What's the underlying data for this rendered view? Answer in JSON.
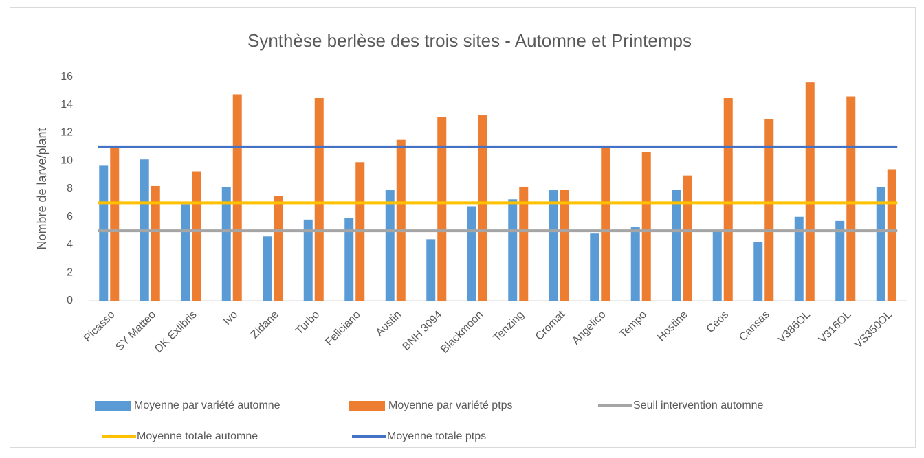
{
  "chart_data": {
    "type": "bar",
    "title": "Synthèse berlèse des trois sites - Automne et Printemps",
    "y_label": "Nombre de larve/plant",
    "categories": [
      "Picasso",
      "SY Matteo",
      "DK Exlibris",
      "Ivo",
      "Zidane",
      "Turbo",
      "Feliciano",
      "Austin",
      "BNH 3094",
      "Blackmoon",
      "Tenzing",
      "Cromat",
      "Angelico",
      "Tempo",
      "Hostine",
      "Ceos",
      "Cansas",
      "V386OL",
      "V316OL",
      "VS350OL"
    ],
    "ylim": [
      0,
      16
    ],
    "yticks": [
      0,
      2,
      4,
      6,
      8,
      10,
      12,
      14,
      16
    ],
    "series": [
      {
        "name": "Moyenne par variété automne",
        "type": "bar",
        "color": "#5b9bd5",
        "values": [
          9.65,
          10.1,
          6.9,
          8.1,
          4.6,
          5.8,
          5.9,
          7.9,
          4.4,
          6.75,
          7.25,
          7.9,
          4.8,
          5.25,
          7.95,
          5.0,
          4.2,
          6.0,
          5.7,
          8.1
        ]
      },
      {
        "name": "Moyenne par variété ptps",
        "type": "bar",
        "color": "#ed7d31",
        "values": [
          11.0,
          8.2,
          9.25,
          14.75,
          7.5,
          14.5,
          9.9,
          11.5,
          13.15,
          13.25,
          8.15,
          7.95,
          11.0,
          10.6,
          8.95,
          14.5,
          13.0,
          15.6,
          14.6,
          9.4
        ]
      },
      {
        "name": "Seuil intervention automne",
        "type": "line",
        "color": "#a5a5a5",
        "values": [
          5,
          5,
          5,
          5,
          5,
          5,
          5,
          5,
          5,
          5,
          5,
          5,
          5,
          5,
          5,
          5,
          5,
          5,
          5,
          5
        ]
      },
      {
        "name": "Moyenne totale automne",
        "type": "line",
        "color": "#ffc000",
        "values": [
          7,
          7,
          7,
          7,
          7,
          7,
          7,
          7,
          7,
          7,
          7,
          7,
          7,
          7,
          7,
          7,
          7,
          7,
          7,
          7
        ]
      },
      {
        "name": "Moyenne totale ptps",
        "type": "line",
        "color": "#4472c4",
        "values": [
          11,
          11,
          11,
          11,
          11,
          11,
          11,
          11,
          11,
          11,
          11,
          11,
          11,
          11,
          11,
          11,
          11,
          11,
          11,
          11
        ]
      }
    ]
  }
}
